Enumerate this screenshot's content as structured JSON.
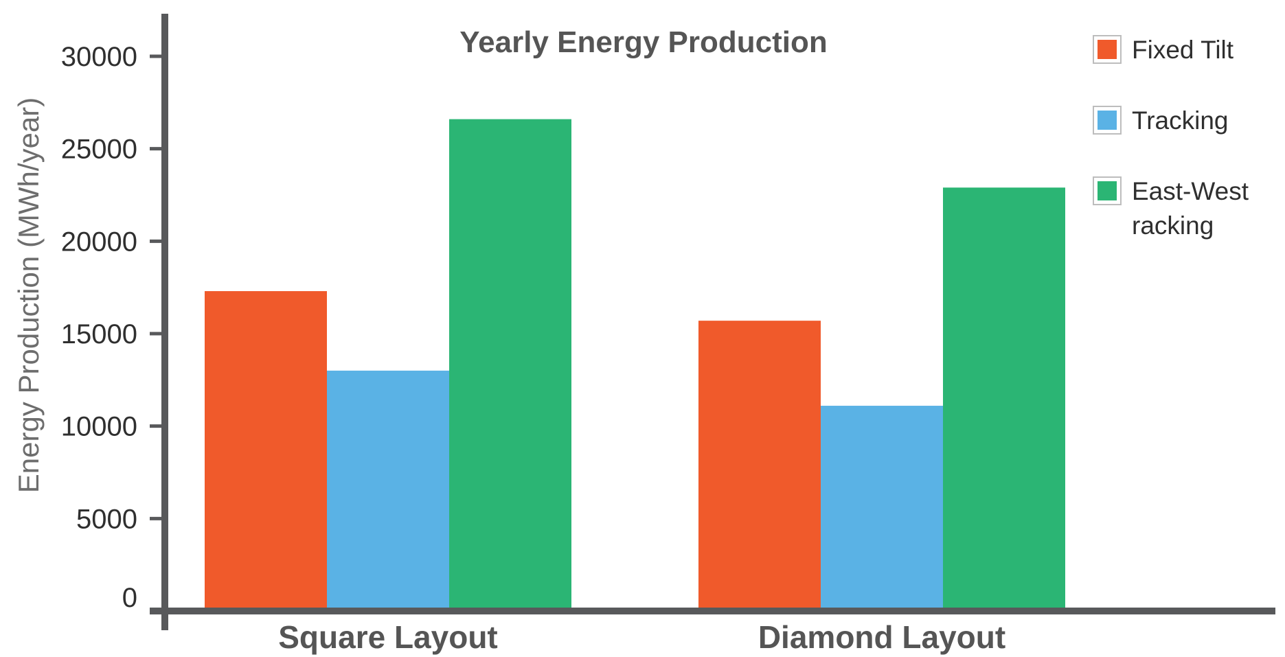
{
  "chart_data": {
    "type": "bar",
    "title": "Yearly Energy Production",
    "xlabel": "",
    "ylabel": "Energy Production (MWh/year)",
    "categories": [
      "Square Layout",
      "Diamond Layout"
    ],
    "series": [
      {
        "name": "Fixed Tilt",
        "values": [
          17300,
          15700
        ],
        "color": "#f05a2b"
      },
      {
        "name": "Tracking",
        "values": [
          13000,
          11100
        ],
        "color": "#5ab2e5"
      },
      {
        "name": "East-West racking",
        "legend_lines": [
          "East-West",
          "racking"
        ],
        "values": [
          26600,
          22900
        ],
        "color": "#2bb574"
      }
    ],
    "ylim": [
      0,
      32000
    ],
    "yticks": [
      0,
      5000,
      10000,
      15000,
      20000,
      25000,
      30000
    ],
    "ytick_labels": [
      "0",
      "5000",
      "10000",
      "15000",
      "20000",
      "25000",
      "30000"
    ],
    "grid": false,
    "legend_position": "top-right",
    "axis_color": "#58595b"
  }
}
